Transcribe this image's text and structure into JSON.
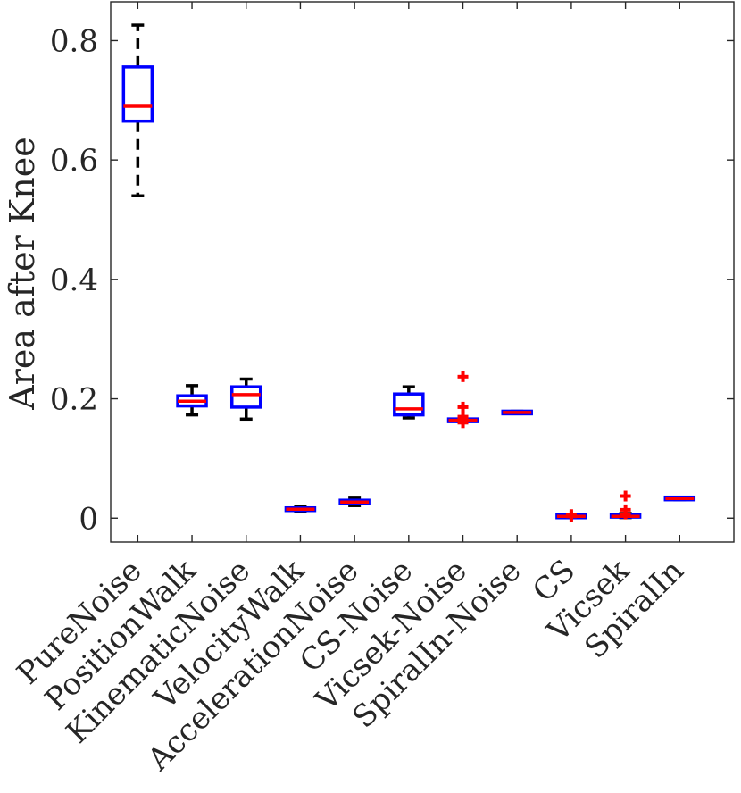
{
  "chart_data": {
    "type": "boxplot",
    "title": "",
    "xlabel": "",
    "ylabel": "Area after Knee",
    "ylim": [
      -0.04,
      0.865
    ],
    "yticks": [
      0,
      0.2,
      0.4,
      0.6,
      0.8
    ],
    "ytick_labels": [
      "0",
      "0.2",
      "0.4",
      "0.6",
      "0.8"
    ],
    "categories": [
      "PureNoise",
      "PositionWalk",
      "KinematicNoise",
      "VelocityWalk",
      "AccelerationNoise",
      "CS-Noise",
      "Vicsek-Noise",
      "SpiralIn-Noise",
      "CS",
      "Vicsek",
      "SpiralIn"
    ],
    "boxes": [
      {
        "category": "PureNoise",
        "q1": 0.665,
        "median": 0.69,
        "q3": 0.756,
        "whisker_low": 0.54,
        "whisker_high": 0.826,
        "outliers": []
      },
      {
        "category": "PositionWalk",
        "q1": 0.188,
        "median": 0.196,
        "q3": 0.205,
        "whisker_low": 0.173,
        "whisker_high": 0.222,
        "outliers": []
      },
      {
        "category": "KinematicNoise",
        "q1": 0.186,
        "median": 0.207,
        "q3": 0.22,
        "whisker_low": 0.166,
        "whisker_high": 0.233,
        "outliers": []
      },
      {
        "category": "VelocityWalk",
        "q1": 0.013,
        "median": 0.015,
        "q3": 0.017,
        "whisker_low": 0.011,
        "whisker_high": 0.019,
        "outliers": []
      },
      {
        "category": "AccelerationNoise",
        "q1": 0.024,
        "median": 0.027,
        "q3": 0.03,
        "whisker_low": 0.021,
        "whisker_high": 0.035,
        "outliers": []
      },
      {
        "category": "CS-Noise",
        "q1": 0.173,
        "median": 0.183,
        "q3": 0.208,
        "whisker_low": 0.168,
        "whisker_high": 0.22,
        "outliers": []
      },
      {
        "category": "Vicsek-Noise",
        "q1": 0.163,
        "median": 0.164,
        "q3": 0.165,
        "whisker_low": 0.162,
        "whisker_high": 0.166,
        "outliers": [
          0.237,
          0.186,
          0.17,
          0.16,
          0.165
        ]
      },
      {
        "category": "SpiralIn-Noise",
        "q1": 0.176,
        "median": 0.177,
        "q3": 0.178,
        "whisker_low": 0.175,
        "whisker_high": 0.179,
        "outliers": []
      },
      {
        "category": "CS",
        "q1": 0.002,
        "median": 0.003,
        "q3": 0.004,
        "whisker_low": 0.001,
        "whisker_high": 0.005,
        "outliers": [
          0.006,
          0.003
        ]
      },
      {
        "category": "Vicsek",
        "q1": 0.002,
        "median": 0.003,
        "q3": 0.006,
        "whisker_low": 0.001,
        "whisker_high": 0.008,
        "outliers": [
          0.037,
          0.014,
          0.007
        ]
      },
      {
        "category": "SpiralIn",
        "q1": 0.032,
        "median": 0.033,
        "q3": 0.034,
        "whisker_low": 0.031,
        "whisker_high": 0.035,
        "outliers": []
      }
    ],
    "colors": {
      "box": "#0000ff",
      "median": "#ff0000",
      "whisker": "#000000",
      "outlier": "#ff0000",
      "axis": "#262626"
    }
  }
}
